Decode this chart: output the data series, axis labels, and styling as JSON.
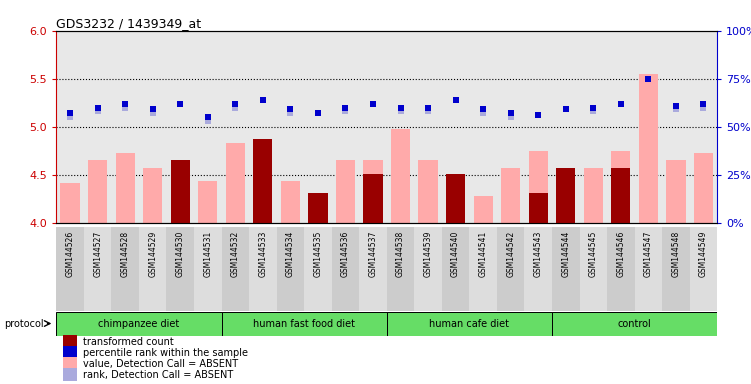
{
  "title": "GDS3232 / 1439349_at",
  "samples": [
    "GSM144526",
    "GSM144527",
    "GSM144528",
    "GSM144529",
    "GSM144530",
    "GSM144531",
    "GSM144532",
    "GSM144533",
    "GSM144534",
    "GSM144535",
    "GSM144536",
    "GSM144537",
    "GSM144538",
    "GSM144539",
    "GSM144540",
    "GSM144541",
    "GSM144542",
    "GSM144543",
    "GSM144544",
    "GSM144545",
    "GSM144546",
    "GSM144547",
    "GSM144548",
    "GSM144549"
  ],
  "pink_values": [
    4.41,
    4.65,
    4.73,
    4.57,
    4.43,
    4.43,
    4.83,
    4.65,
    4.43,
    4.28,
    4.65,
    4.65,
    4.98,
    4.65,
    4.43,
    4.28,
    4.57,
    4.75,
    4.57,
    4.57,
    4.75,
    5.55,
    4.65,
    4.73
  ],
  "red_values": [
    null,
    null,
    null,
    null,
    4.65,
    null,
    null,
    4.87,
    null,
    4.31,
    null,
    4.51,
    null,
    null,
    4.51,
    null,
    null,
    4.31,
    4.57,
    null,
    4.57,
    null,
    null,
    null
  ],
  "blue_rank": [
    57,
    60,
    62,
    59,
    62,
    55,
    62,
    64,
    59,
    57,
    60,
    62,
    60,
    60,
    64,
    59,
    57,
    56,
    59,
    60,
    62,
    75,
    61,
    62
  ],
  "light_blue_rank": [
    55,
    58,
    60,
    57,
    null,
    53,
    60,
    null,
    57,
    null,
    58,
    null,
    58,
    58,
    null,
    57,
    55,
    null,
    null,
    58,
    null,
    null,
    59,
    60
  ],
  "groups": [
    {
      "label": "chimpanzee diet",
      "start": 0,
      "end": 6
    },
    {
      "label": "human fast food diet",
      "start": 6,
      "end": 12
    },
    {
      "label": "human cafe diet",
      "start": 12,
      "end": 18
    },
    {
      "label": "control",
      "start": 18,
      "end": 24
    }
  ],
  "ylim_left": [
    4.0,
    6.0
  ],
  "ylim_right": [
    0,
    100
  ],
  "yticks_left": [
    4.0,
    4.5,
    5.0,
    5.5,
    6.0
  ],
  "yticks_right": [
    0,
    25,
    50,
    75,
    100
  ],
  "hlines": [
    4.5,
    5.0,
    5.5
  ],
  "left_axis_color": "#cc0000",
  "right_axis_color": "#0000cc",
  "pink_color": "#ffaaaa",
  "red_color": "#990000",
  "blue_color": "#0000cc",
  "light_blue_color": "#aaaadd",
  "bg_color": "#e8e8e8",
  "group_color": "#66dd66",
  "protocol_label": "protocol",
  "legend_items": [
    {
      "color": "#990000",
      "label": "transformed count"
    },
    {
      "color": "#0000cc",
      "label": "percentile rank within the sample"
    },
    {
      "color": "#ffaaaa",
      "label": "value, Detection Call = ABSENT"
    },
    {
      "color": "#aaaadd",
      "label": "rank, Detection Call = ABSENT"
    }
  ]
}
